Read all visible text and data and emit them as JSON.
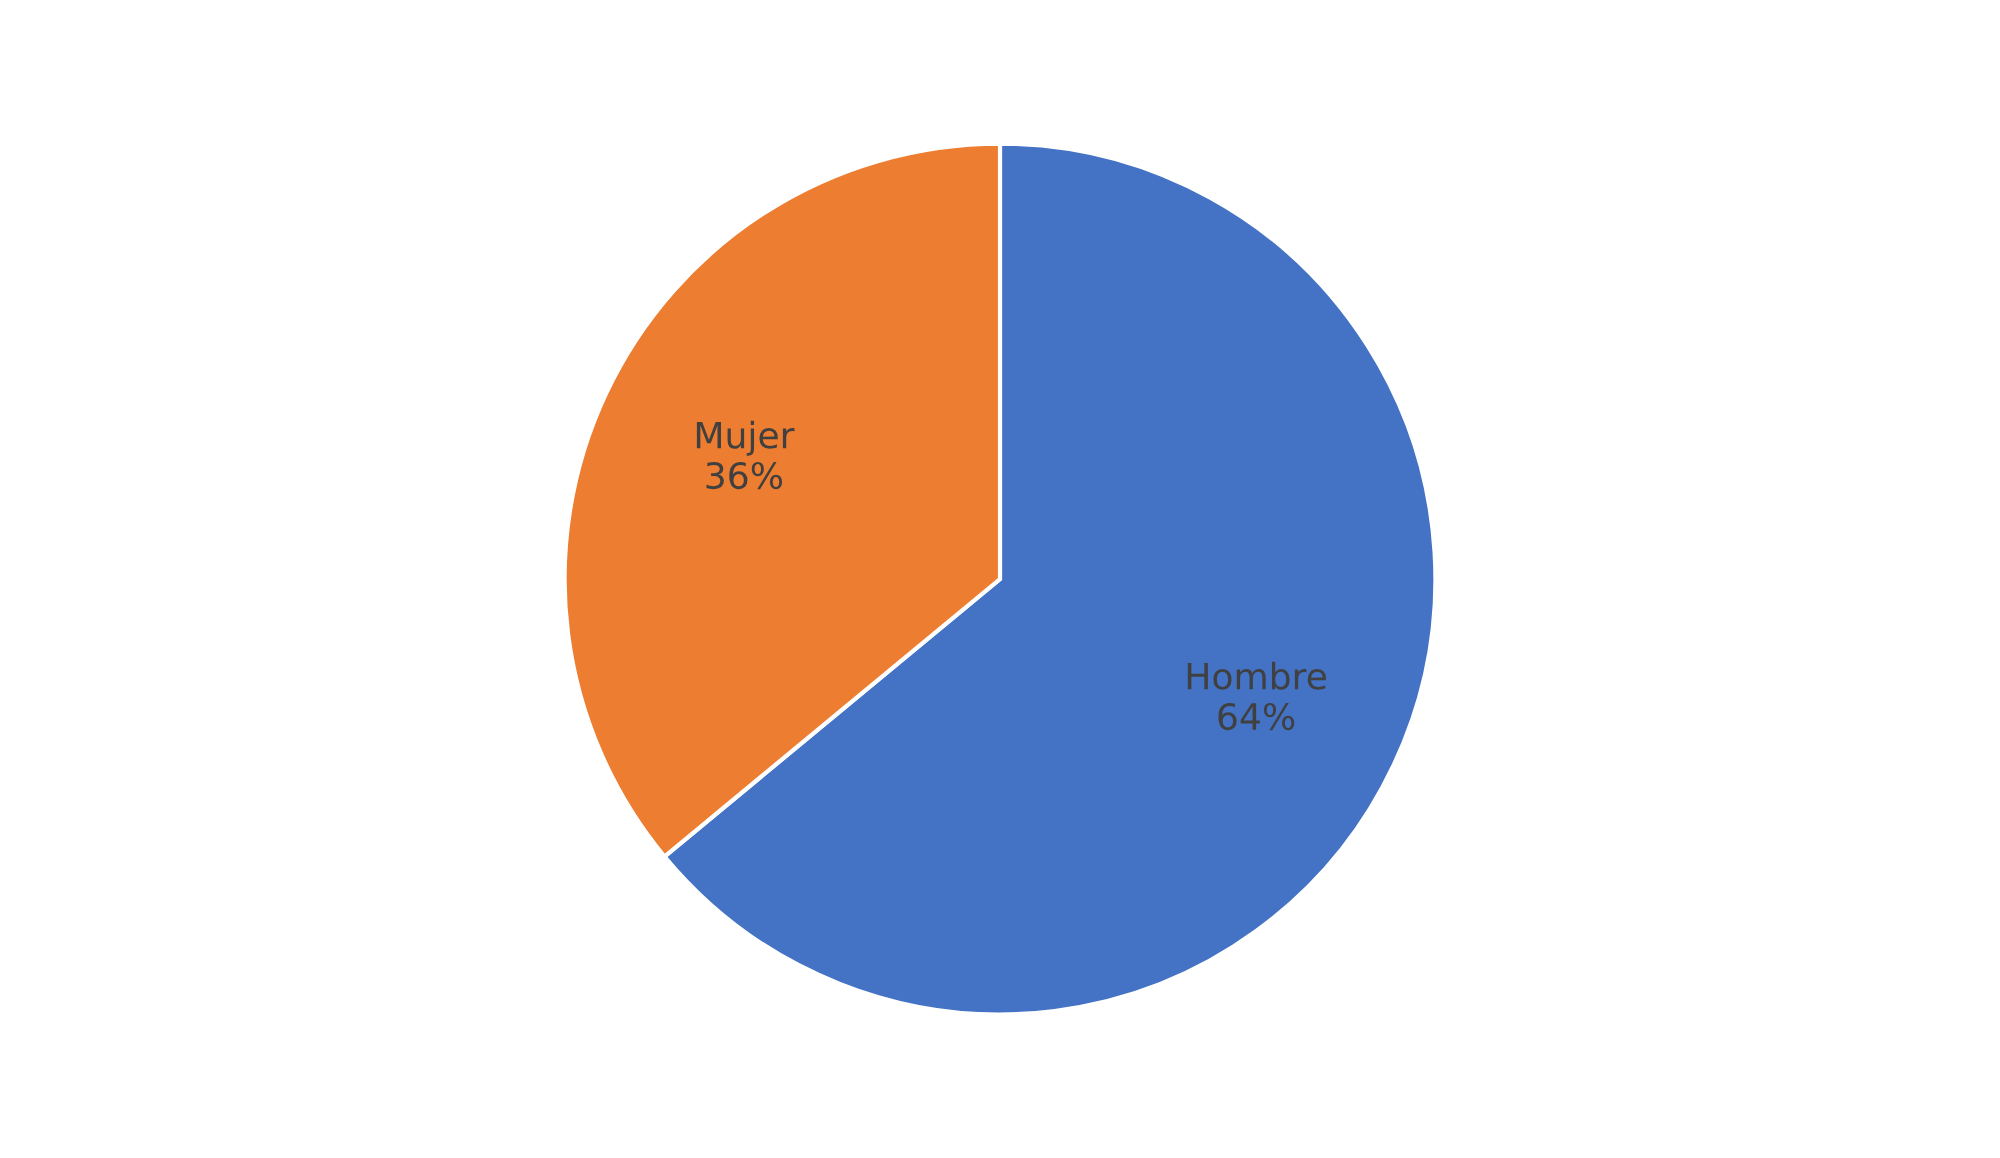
{
  "chart_data": {
    "type": "pie",
    "categories": [
      "Hombre",
      "Mujer"
    ],
    "values": [
      64,
      36
    ],
    "colors": [
      "#4472c4",
      "#ed7d31"
    ],
    "value_labels": [
      "64%",
      "36%"
    ],
    "legend": false
  }
}
